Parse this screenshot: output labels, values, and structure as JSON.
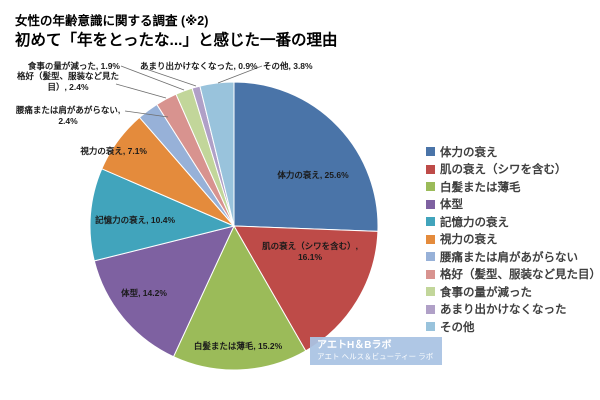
{
  "header": {
    "survey_note": "女性の年齢意識に関する調査 (※2)",
    "title": "初めて「年をとったな...」と感じた一番の理由"
  },
  "chart_data": {
    "type": "pie",
    "title": "初めて「年をとったな...」と感じた一番の理由",
    "unit": "%",
    "start_angle_deg": 0,
    "direction": "clockwise",
    "legend_position": "right",
    "grid": false,
    "categories": [
      "体力の衰え",
      "肌の衰え（シワを含む）",
      "白髪または薄毛",
      "体型",
      "記憶力の衰え",
      "視力の衰え",
      "腰痛または肩があがらない",
      "格好（髪型、服装など見た目）",
      "食事の量が減った",
      "あまり出かけなくなった",
      "その他"
    ],
    "values": [
      25.6,
      16.1,
      15.2,
      14.2,
      10.4,
      7.1,
      2.4,
      2.4,
      1.9,
      0.9,
      3.8
    ],
    "colors": [
      "#4A74A8",
      "#BE4B48",
      "#9BBB59",
      "#7E61A1",
      "#41A4BC",
      "#E48B3C",
      "#97B1D8",
      "#D8938F",
      "#C2D69A",
      "#B0A0C7",
      "#99C3DC"
    ],
    "label_format": "{category}, {value}%"
  },
  "watermark": {
    "line1": "アエトH＆Bラボ",
    "line2": "アエト ヘルス＆ビューティー ラボ",
    "bg_color": "#A9C3E3",
    "text_color": "#FFFFFF"
  }
}
